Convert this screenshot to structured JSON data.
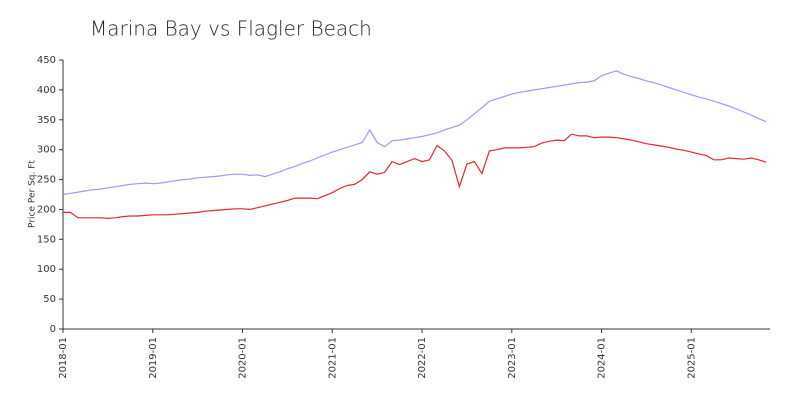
{
  "chart_data": {
    "type": "line",
    "title": "Marina Bay vs Flagler Beach",
    "y_label": "Price Per Sq. Ft",
    "x": [
      "2018-01",
      "2018-02",
      "2018-03",
      "2018-04",
      "2018-05",
      "2018-06",
      "2018-07",
      "2018-08",
      "2018-09",
      "2018-10",
      "2018-11",
      "2018-12",
      "2019-01",
      "2019-02",
      "2019-03",
      "2019-04",
      "2019-05",
      "2019-06",
      "2019-07",
      "2019-08",
      "2019-09",
      "2019-10",
      "2019-11",
      "2019-12",
      "2020-01",
      "2020-02",
      "2020-03",
      "2020-04",
      "2020-05",
      "2020-06",
      "2020-07",
      "2020-08",
      "2020-09",
      "2020-10",
      "2020-11",
      "2020-12",
      "2021-01",
      "2021-02",
      "2021-03",
      "2021-04",
      "2021-05",
      "2021-06",
      "2021-07",
      "2021-08",
      "2021-09",
      "2021-10",
      "2021-11",
      "2021-12",
      "2022-01",
      "2022-02",
      "2022-03",
      "2022-04",
      "2022-05",
      "2022-06",
      "2022-07",
      "2022-08",
      "2022-09",
      "2022-10",
      "2022-11",
      "2022-12",
      "2023-01",
      "2023-02",
      "2023-03",
      "2023-04",
      "2023-05",
      "2023-06",
      "2023-07",
      "2023-08",
      "2023-09",
      "2023-10",
      "2023-11",
      "2023-12",
      "2024-01",
      "2024-02",
      "2024-03",
      "2024-04",
      "2024-05",
      "2024-06",
      "2024-07",
      "2024-08",
      "2024-09",
      "2024-10",
      "2024-11",
      "2024-12",
      "2025-01",
      "2025-02",
      "2025-03",
      "2025-04",
      "2025-05",
      "2025-06",
      "2025-07",
      "2025-08",
      "2025-09",
      "2025-10",
      "2025-11"
    ],
    "series": [
      {
        "color": "#9a9af2",
        "values": [
          225,
          227,
          229,
          231,
          233,
          234,
          236,
          238,
          240,
          242,
          243,
          244,
          243,
          244,
          246,
          248,
          250,
          251,
          253,
          254,
          255,
          256,
          258,
          259,
          259,
          257,
          258,
          255,
          259,
          263,
          268,
          272,
          277,
          281,
          286,
          291,
          296,
          300,
          304,
          308,
          312,
          333,
          312,
          305,
          315,
          316,
          318,
          320,
          322,
          325,
          328,
          333,
          337,
          341,
          350,
          360,
          370,
          381,
          385,
          389,
          393,
          396,
          398,
          400,
          402,
          404,
          406,
          408,
          410,
          412,
          413,
          415,
          424,
          428,
          432,
          426,
          422,
          419,
          415,
          412,
          408,
          404,
          400,
          396,
          392,
          388,
          385,
          381,
          377,
          373,
          368,
          363,
          358,
          352,
          347
        ]
      },
      {
        "color": "#e8262a",
        "values": [
          195,
          195,
          186,
          186,
          186,
          186,
          185,
          186,
          188,
          189,
          189,
          190,
          191,
          191,
          191,
          192,
          193,
          194,
          195,
          197,
          198,
          199,
          200,
          201,
          201,
          200,
          203,
          206,
          209,
          212,
          215,
          219,
          219,
          219,
          218,
          223,
          228,
          235,
          240,
          242,
          250,
          263,
          259,
          262,
          280,
          275,
          280,
          285,
          280,
          283,
          307,
          298,
          282,
          238,
          276,
          280,
          260,
          298,
          300,
          303,
          303,
          303,
          304,
          305,
          311,
          314,
          316,
          315,
          326,
          323,
          323,
          320,
          321,
          321,
          320,
          318,
          316,
          313,
          310,
          308,
          306,
          304,
          301,
          299,
          296,
          293,
          290,
          283,
          283,
          286,
          285,
          284,
          286,
          283,
          279
        ]
      }
    ],
    "xticks": [
      "2018-01",
      "2019-01",
      "2020-01",
      "2021-01",
      "2022-01",
      "2023-01",
      "2024-01",
      "2025-01"
    ],
    "ylim": [
      0,
      450
    ],
    "yticks": [
      0,
      50,
      100,
      150,
      200,
      250,
      300,
      350,
      400,
      450
    ]
  }
}
